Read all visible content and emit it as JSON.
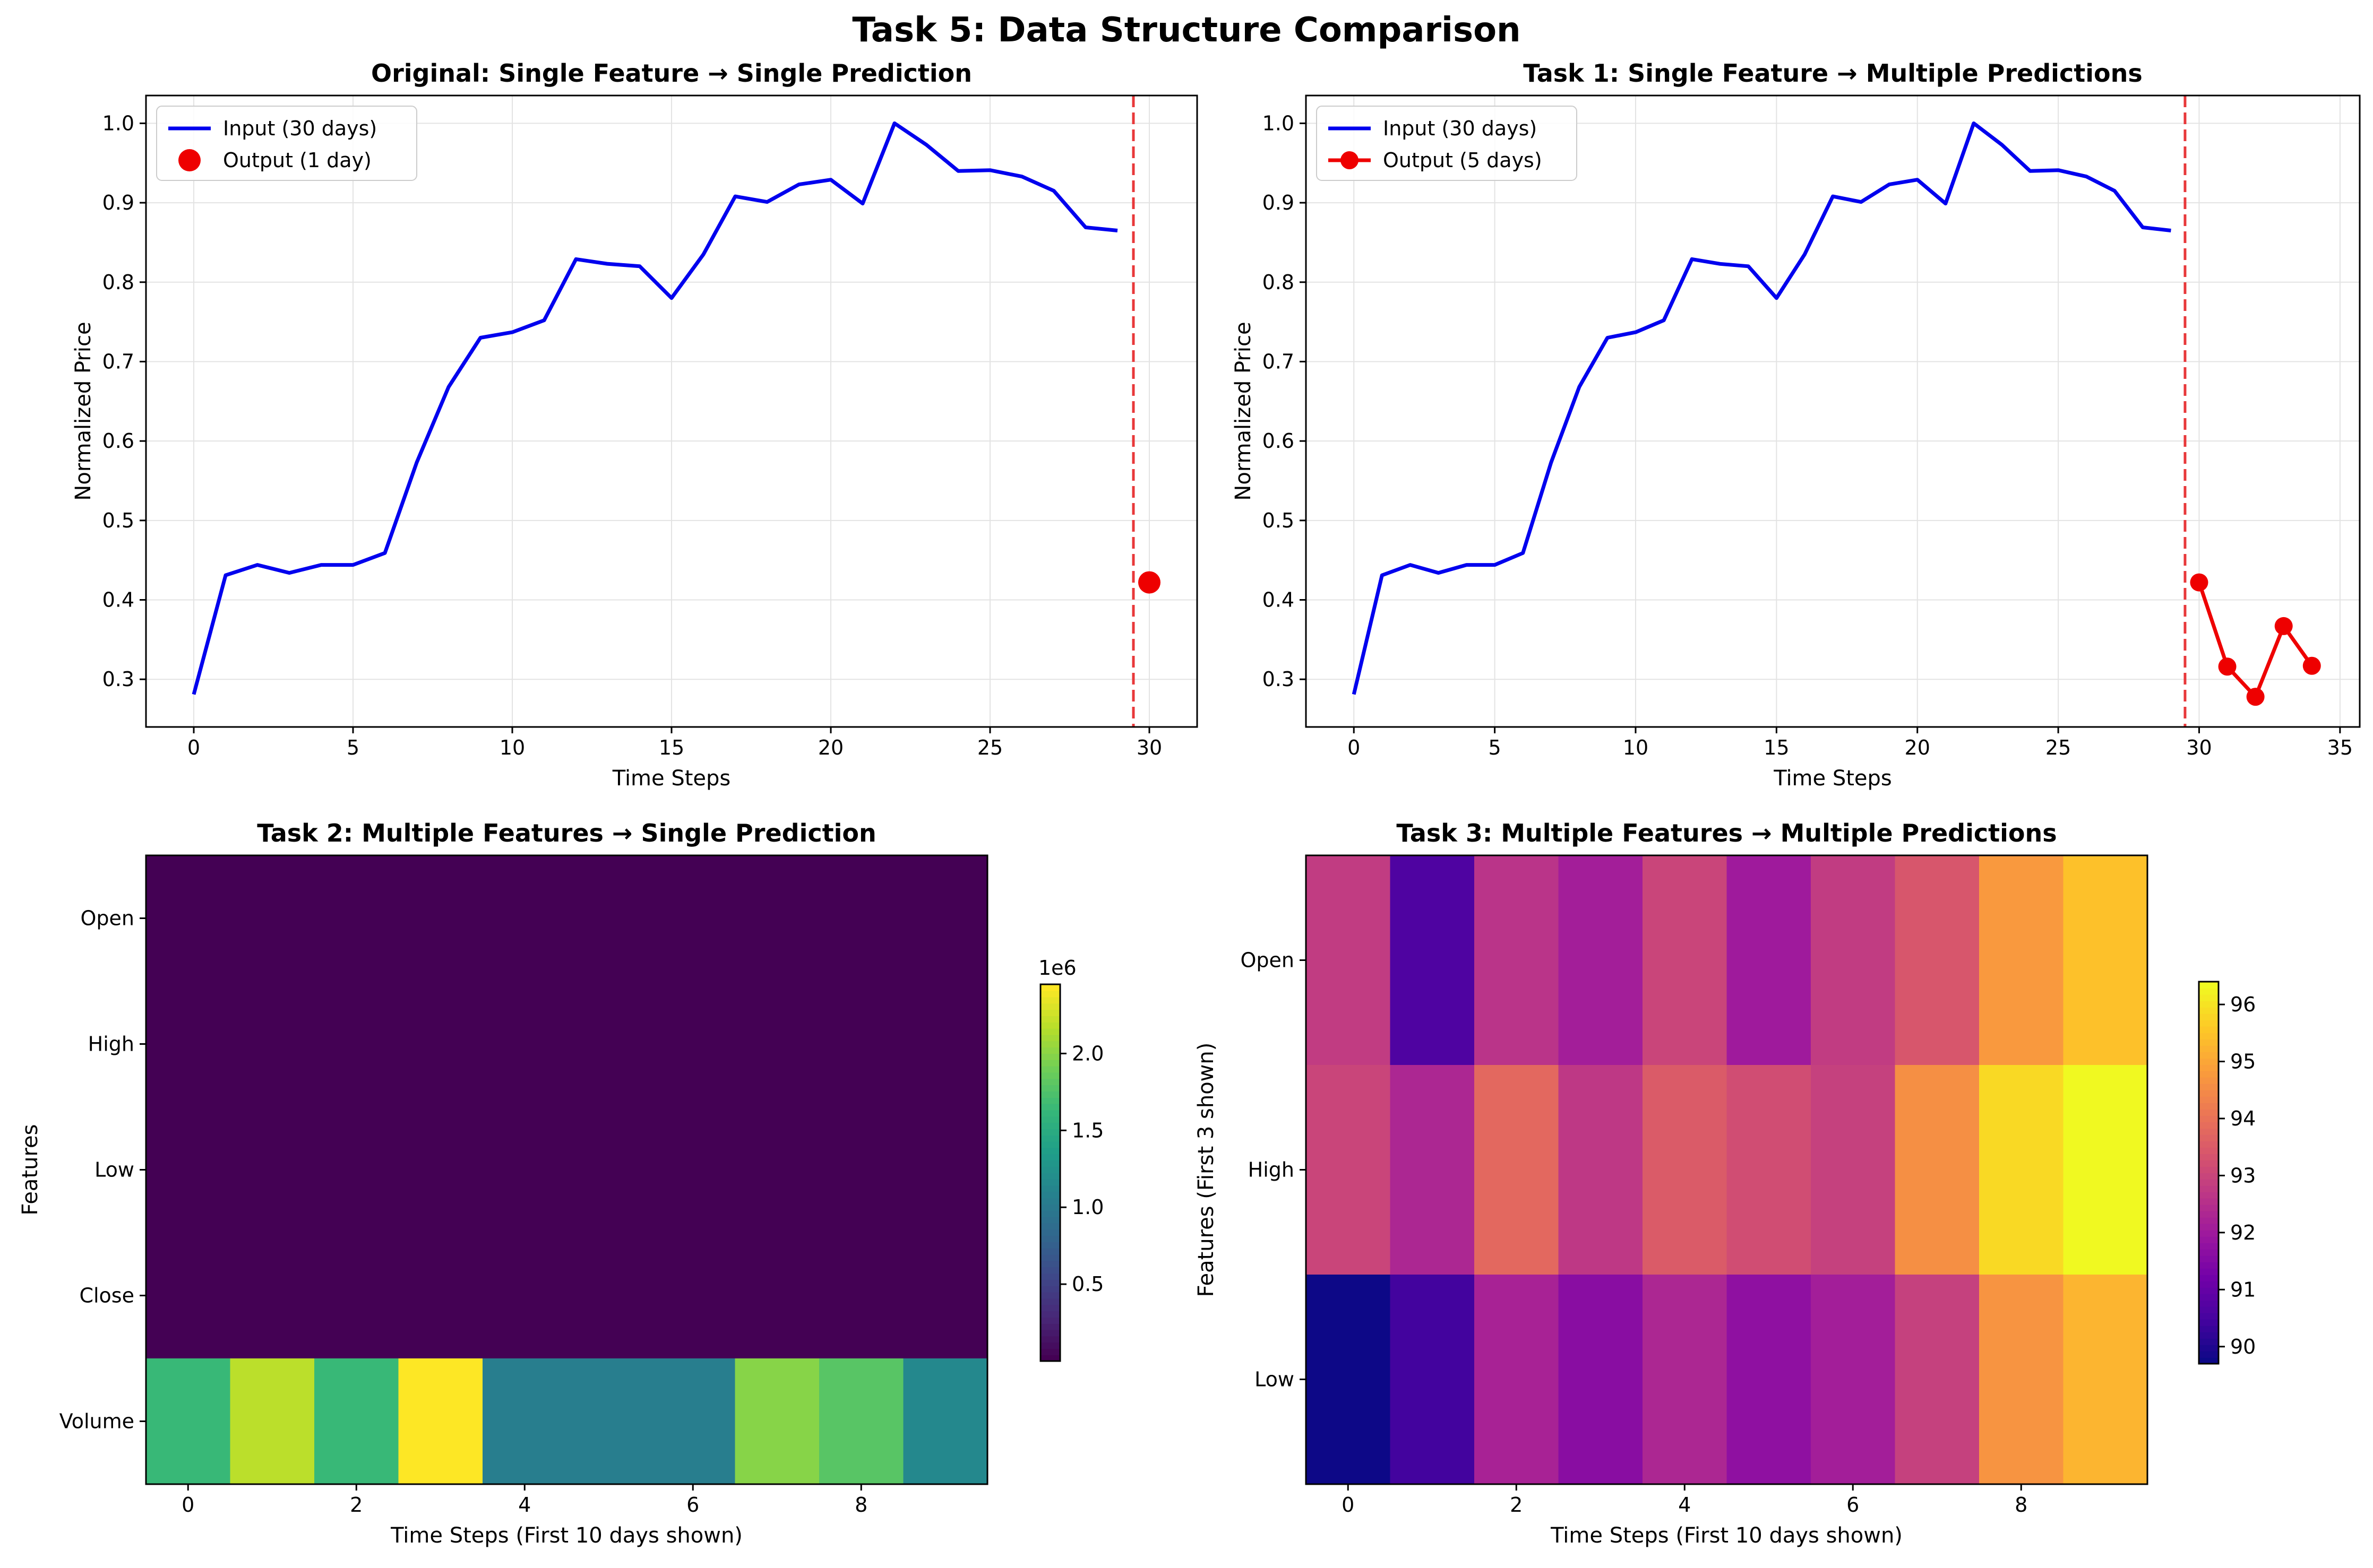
{
  "figure": {
    "title": "Task 5: Data Structure Comparison"
  },
  "chart_data": [
    {
      "id": "original",
      "type": "line",
      "title": "Original: Single Feature → Single Prediction",
      "xlabel": "Time Steps",
      "ylabel": "Normalized Price",
      "xlim": [
        -1.5,
        31.5
      ],
      "ylim": [
        0.24,
        1.035
      ],
      "xticks": [
        0,
        5,
        10,
        15,
        20,
        25,
        30
      ],
      "yticks": [
        0.3,
        0.4,
        0.5,
        0.6,
        0.7,
        0.8,
        0.9,
        1.0
      ],
      "grid": true,
      "legend_position": "top-left",
      "vline": {
        "x": 29.5,
        "color": "#e8383a",
        "style": "dashed"
      },
      "series": [
        {
          "name": "Input (30 days)",
          "kind": "line",
          "color": "#0000ee",
          "x": [
            0,
            1,
            2,
            3,
            4,
            5,
            6,
            7,
            8,
            9,
            10,
            11,
            12,
            13,
            14,
            15,
            16,
            17,
            18,
            19,
            20,
            21,
            22,
            23,
            24,
            25,
            26,
            27,
            28,
            29
          ],
          "y": [
            0.281,
            0.431,
            0.444,
            0.434,
            0.444,
            0.444,
            0.459,
            0.573,
            0.668,
            0.73,
            0.737,
            0.752,
            0.829,
            0.823,
            0.82,
            0.78,
            0.835,
            0.908,
            0.901,
            0.923,
            0.929,
            0.899,
            1.0,
            0.973,
            0.94,
            0.941,
            0.933,
            0.915,
            0.869,
            0.865
          ]
        },
        {
          "name": "Output (1 day)",
          "kind": "marker",
          "color": "#ee0000",
          "x": [
            30
          ],
          "y": [
            0.422
          ]
        }
      ]
    },
    {
      "id": "task1",
      "type": "line",
      "title": "Task 1: Single Feature → Multiple Predictions",
      "xlabel": "Time Steps",
      "ylabel": "Normalized Price",
      "xlim": [
        -1.7,
        35.7
      ],
      "ylim": [
        0.24,
        1.035
      ],
      "xticks": [
        0,
        5,
        10,
        15,
        20,
        25,
        30,
        35
      ],
      "yticks": [
        0.3,
        0.4,
        0.5,
        0.6,
        0.7,
        0.8,
        0.9,
        1.0
      ],
      "grid": true,
      "legend_position": "top-left",
      "vline": {
        "x": 29.5,
        "color": "#e8383a",
        "style": "dashed"
      },
      "series": [
        {
          "name": "Input (30 days)",
          "kind": "line",
          "color": "#0000ee",
          "x": [
            0,
            1,
            2,
            3,
            4,
            5,
            6,
            7,
            8,
            9,
            10,
            11,
            12,
            13,
            14,
            15,
            16,
            17,
            18,
            19,
            20,
            21,
            22,
            23,
            24,
            25,
            26,
            27,
            28,
            29
          ],
          "y": [
            0.281,
            0.431,
            0.444,
            0.434,
            0.444,
            0.444,
            0.459,
            0.573,
            0.668,
            0.73,
            0.737,
            0.752,
            0.829,
            0.823,
            0.82,
            0.78,
            0.835,
            0.908,
            0.901,
            0.923,
            0.929,
            0.899,
            1.0,
            0.973,
            0.94,
            0.941,
            0.933,
            0.915,
            0.869,
            0.865
          ]
        },
        {
          "name": "Output (5 days)",
          "kind": "line-marker",
          "color": "#ee0000",
          "x": [
            30,
            31,
            32,
            33,
            34
          ],
          "y": [
            0.422,
            0.316,
            0.278,
            0.367,
            0.317
          ]
        }
      ]
    },
    {
      "id": "task2",
      "type": "heatmap",
      "title": "Task 2: Multiple Features → Single Prediction",
      "xlabel": "Time Steps (First 10 days shown)",
      "ylabel": "Features",
      "rows": [
        "Open",
        "High",
        "Low",
        "Close",
        "Volume"
      ],
      "xticks": [
        0,
        2,
        4,
        6,
        8
      ],
      "colormap": "viridis",
      "vmin": 0,
      "vmax": 2450000,
      "colorbar_ticks": [
        0.5,
        1.0,
        1.5,
        2.0
      ],
      "colorbar_scale_label": "1e6",
      "colorbar_tick_multiplier": 1000000,
      "values": [
        [
          91.6,
          90.3,
          92.4,
          92.0,
          92.6,
          91.9,
          92.4,
          93.0,
          94.6,
          95.3
        ],
        [
          92.9,
          92.1,
          93.9,
          92.6,
          93.4,
          93.1,
          92.8,
          94.5,
          95.8,
          96.3
        ],
        [
          89.7,
          90.4,
          91.9,
          91.4,
          92.1,
          91.6,
          91.9,
          92.7,
          94.5,
          95.0
        ],
        [
          92.8,
          91.6,
          93.4,
          92.3,
          93.1,
          92.6,
          92.4,
          93.9,
          95.5,
          95.7
        ],
        [
          1650000,
          2200000,
          1650000,
          2450000,
          1050000,
          1050000,
          1050000,
          2000000,
          1800000,
          1150000
        ]
      ]
    },
    {
      "id": "task3",
      "type": "heatmap",
      "title": "Task 3: Multiple Features → Multiple Predictions",
      "xlabel": "Time Steps (First 10 days shown)",
      "ylabel": "Features (First 3 shown)",
      "rows": [
        "Open",
        "High",
        "Low"
      ],
      "xticks": [
        0,
        2,
        4,
        6,
        8
      ],
      "colormap": "plasma",
      "vmin": 89.7,
      "vmax": 96.4,
      "colorbar_ticks": [
        90,
        91,
        92,
        93,
        94,
        95,
        96
      ],
      "colorbar_scale_label": "",
      "colorbar_tick_multiplier": 1,
      "values": [
        [
          92.8,
          90.6,
          92.6,
          92.1,
          93.0,
          92.0,
          92.8,
          93.4,
          94.8,
          95.5
        ],
        [
          93.0,
          92.3,
          93.8,
          92.7,
          93.5,
          93.2,
          92.9,
          94.6,
          95.9,
          96.4
        ],
        [
          89.7,
          90.4,
          92.2,
          91.6,
          92.3,
          91.7,
          92.1,
          92.9,
          94.7,
          95.3
        ]
      ]
    }
  ]
}
